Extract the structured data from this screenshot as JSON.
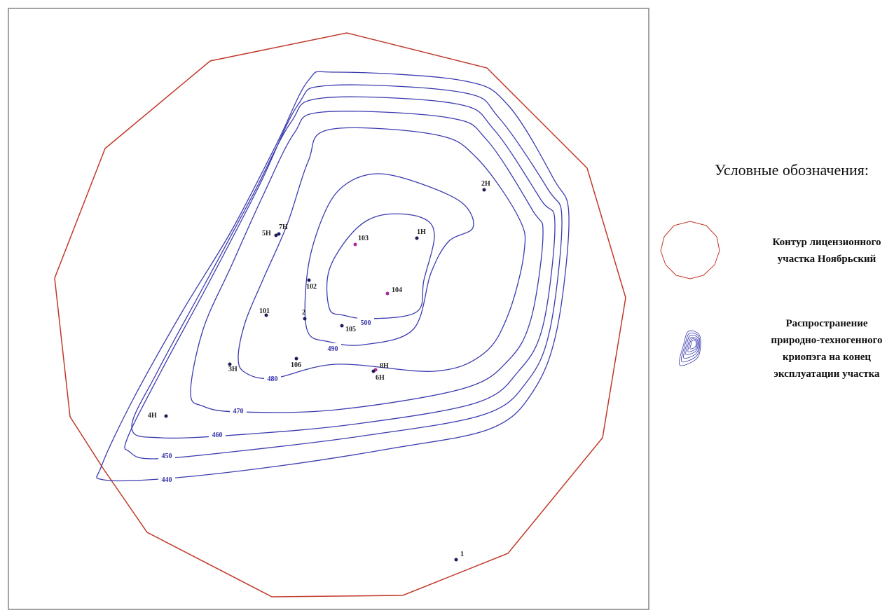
{
  "map": {
    "contour_labels": [
      "440",
      "450",
      "460",
      "470",
      "480",
      "490",
      "500"
    ],
    "wells": [
      "2H",
      "1H",
      "103",
      "7H",
      "5H",
      "102",
      "104",
      "101",
      "2",
      "105",
      "3H",
      "106",
      "8H",
      "6H",
      "4H",
      "1"
    ],
    "legend": {
      "title": "Условные обозначения:",
      "items": [
        {
          "lines": [
            "Контур лицензионного",
            "участка Ноябрьский"
          ]
        },
        {
          "lines": [
            "Распространение",
            "природно-техногенного",
            "криопэга на конец",
            "эксплуатации участка"
          ]
        }
      ]
    }
  }
}
